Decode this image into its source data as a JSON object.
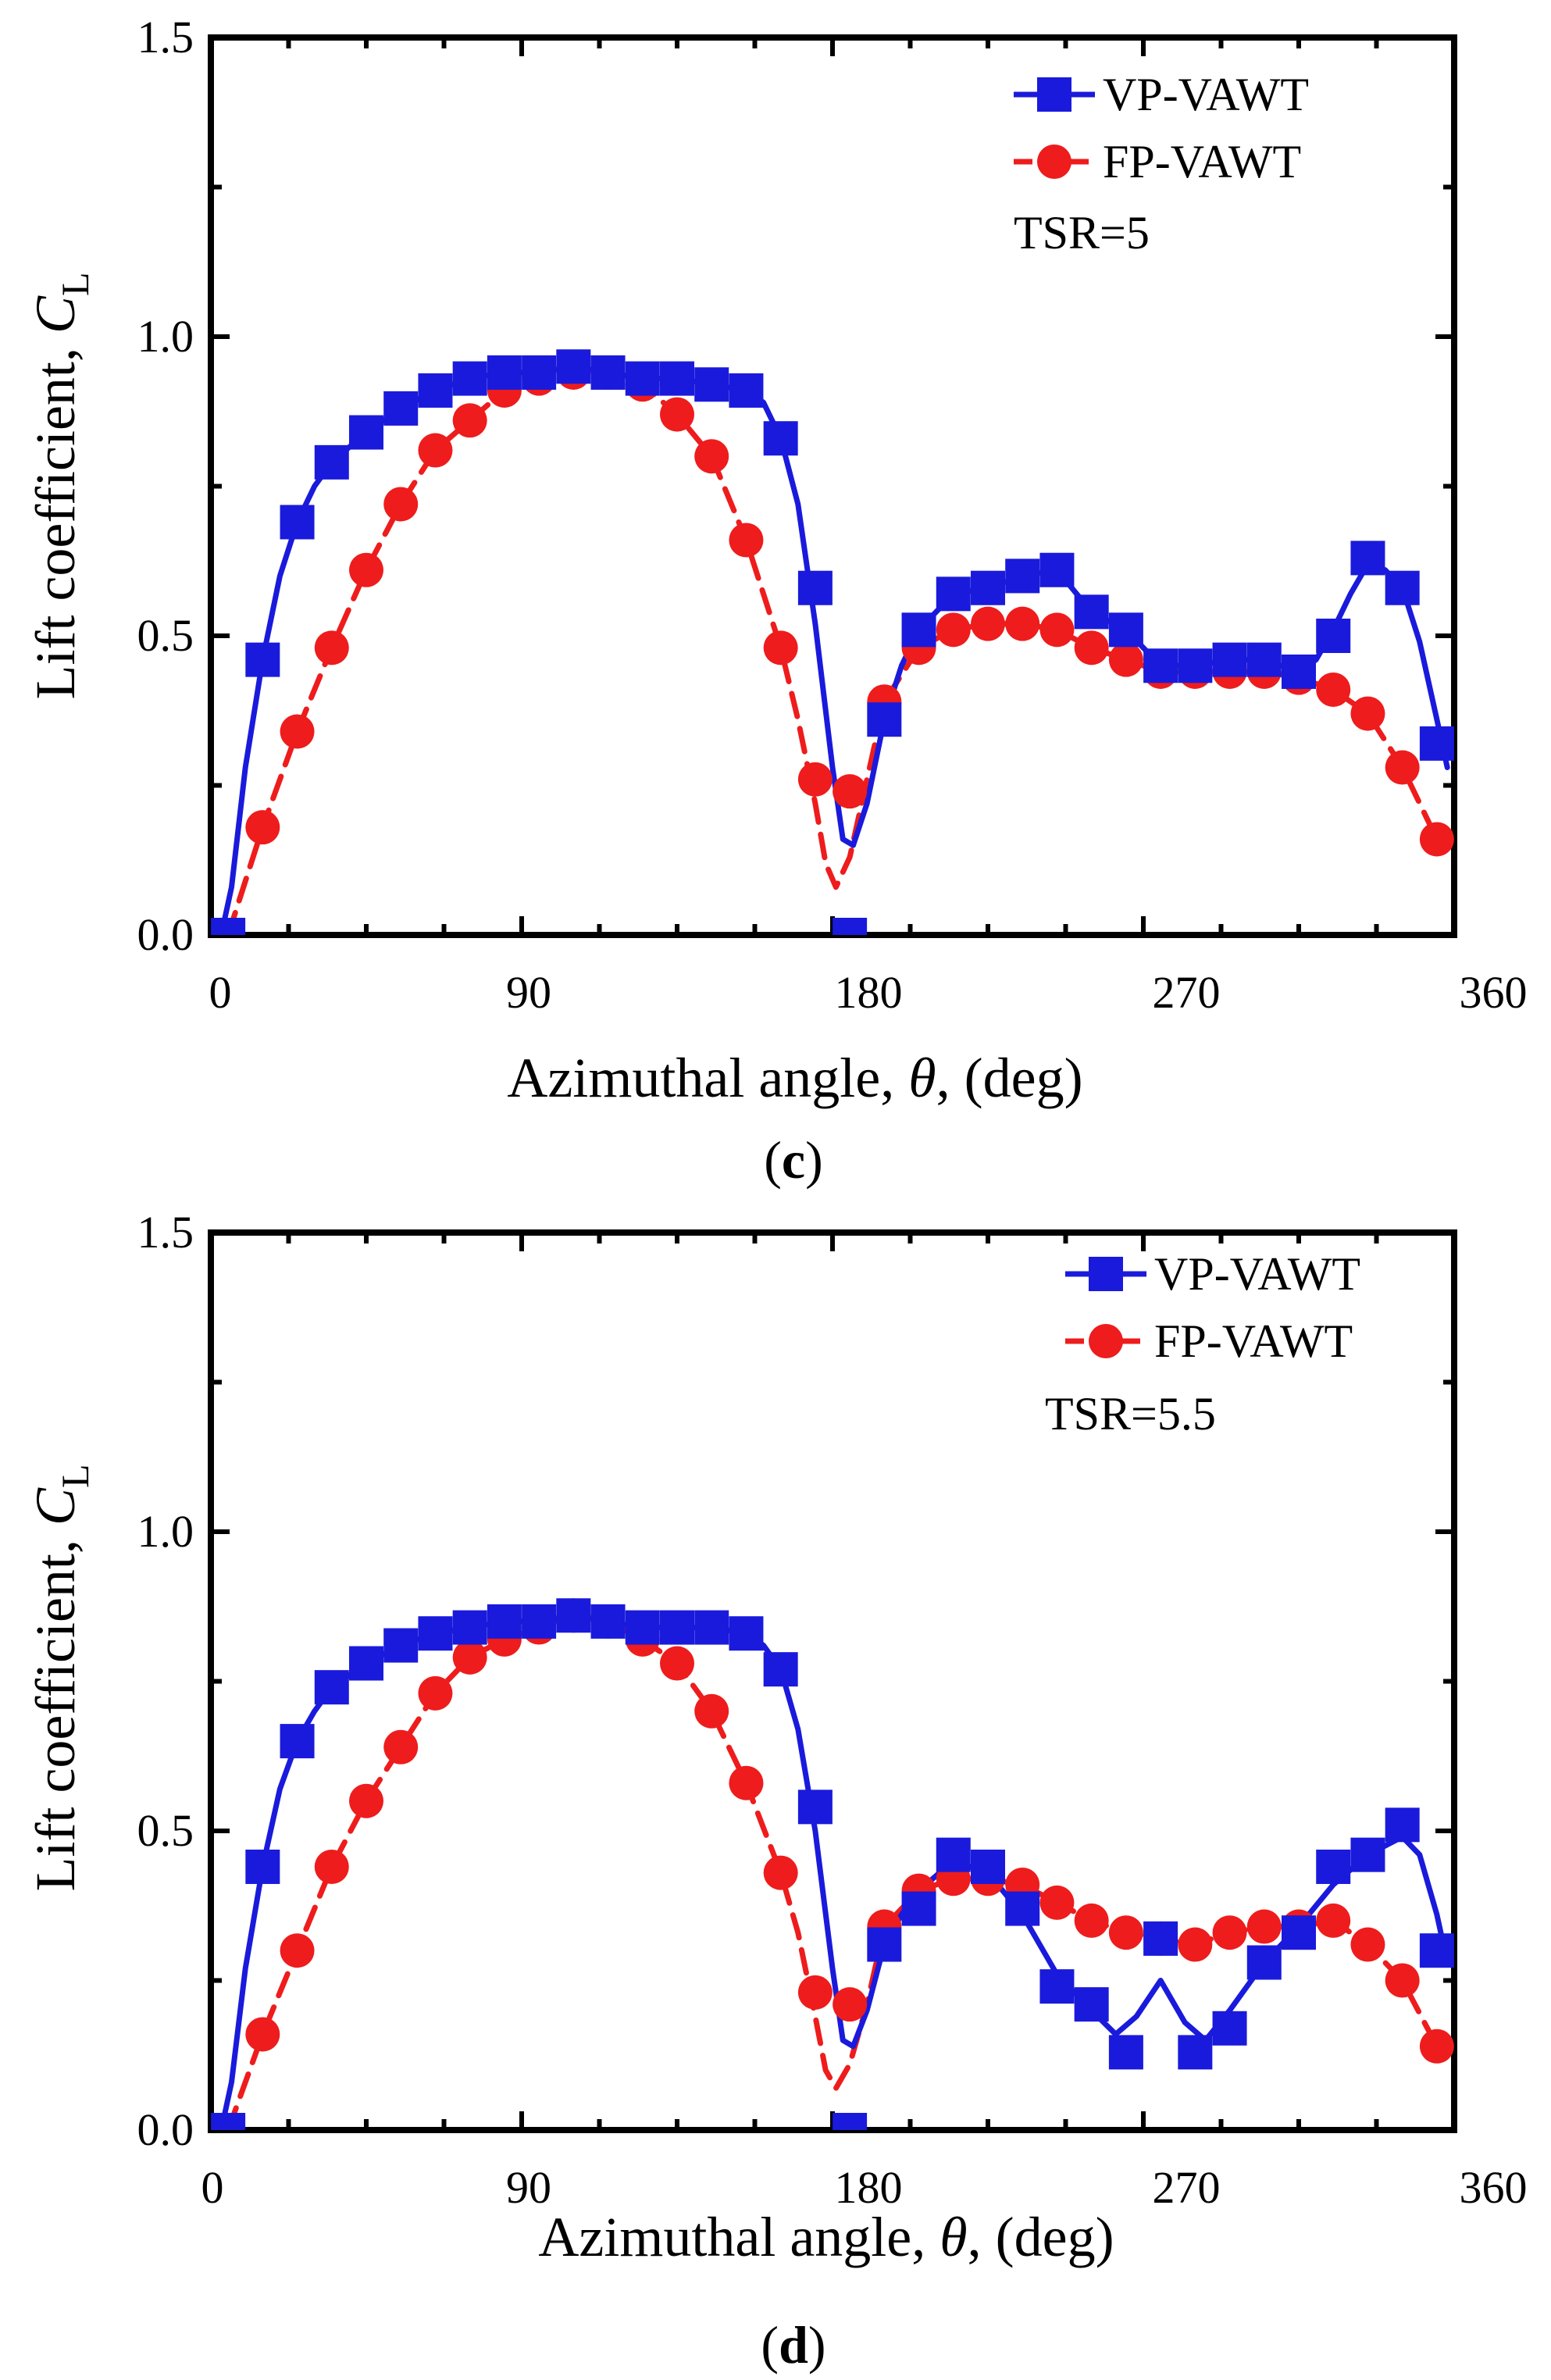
{
  "chart_data": [
    {
      "type": "line",
      "panel_label": "(c)",
      "panel_letter": "c",
      "annotation": "TSR=5",
      "xlabel_prefix": "Azimuthal angle, ",
      "xlabel_symbol": "θ",
      "xlabel_suffix": ", (deg)",
      "ylabel_prefix": "Lift coefficient, ",
      "ylabel_symbol": "C",
      "ylabel_subscript": "L",
      "xlim": [
        0,
        360
      ],
      "ylim": [
        0,
        1.5
      ],
      "xticks": [
        "0",
        "90",
        "180",
        "270",
        "360"
      ],
      "yticks": [
        "0.0",
        "0.5",
        "1.0",
        "1.5"
      ],
      "legend_position": "top-right",
      "series": [
        {
          "name": "VP-VAWT",
          "color": "#1a1adc",
          "marker": "square",
          "line": "solid",
          "x": [
            5,
            15,
            25,
            35,
            45,
            55,
            65,
            75,
            85,
            95,
            105,
            115,
            125,
            135,
            145,
            155,
            165,
            175,
            185,
            195,
            205,
            215,
            225,
            235,
            245,
            255,
            265,
            275,
            285,
            295,
            305,
            315,
            325,
            335,
            345,
            355
          ],
          "y": [
            0.0,
            0.46,
            0.69,
            0.79,
            0.84,
            0.88,
            0.91,
            0.93,
            0.94,
            0.94,
            0.95,
            0.94,
            0.93,
            0.93,
            0.92,
            0.91,
            0.83,
            0.58,
            0.0,
            0.36,
            0.51,
            0.57,
            0.58,
            0.6,
            0.61,
            0.54,
            0.51,
            0.45,
            0.45,
            0.46,
            0.46,
            0.44,
            0.5,
            0.63,
            0.58,
            0.32
          ],
          "curve_x": [
            3,
            6,
            10,
            15,
            20,
            25,
            30,
            35,
            45,
            55,
            65,
            75,
            85,
            95,
            105,
            115,
            125,
            135,
            145,
            155,
            160,
            165,
            170,
            175,
            180,
            183,
            186,
            190,
            195,
            200,
            205,
            215,
            225,
            235,
            245,
            255,
            265,
            275,
            285,
            295,
            305,
            315,
            320,
            325,
            330,
            335,
            340,
            345,
            350,
            355,
            358
          ],
          "curve_y": [
            0.0,
            0.08,
            0.28,
            0.46,
            0.6,
            0.69,
            0.75,
            0.79,
            0.84,
            0.88,
            0.91,
            0.93,
            0.94,
            0.94,
            0.95,
            0.94,
            0.93,
            0.93,
            0.92,
            0.91,
            0.89,
            0.83,
            0.72,
            0.52,
            0.28,
            0.16,
            0.15,
            0.22,
            0.36,
            0.45,
            0.51,
            0.57,
            0.58,
            0.6,
            0.61,
            0.54,
            0.51,
            0.45,
            0.45,
            0.46,
            0.46,
            0.44,
            0.46,
            0.51,
            0.57,
            0.62,
            0.61,
            0.58,
            0.49,
            0.36,
            0.28
          ]
        },
        {
          "name": "FP-VAWT",
          "color": "#ee1c1c",
          "marker": "circle",
          "line": "dashed",
          "x": [
            5,
            15,
            25,
            35,
            45,
            55,
            65,
            75,
            85,
            95,
            105,
            115,
            125,
            135,
            145,
            155,
            165,
            175,
            185,
            195,
            205,
            215,
            225,
            235,
            245,
            255,
            265,
            275,
            285,
            295,
            305,
            315,
            325,
            335,
            345,
            355
          ],
          "y": [
            0.0,
            0.18,
            0.34,
            0.48,
            0.61,
            0.72,
            0.81,
            0.86,
            0.91,
            0.93,
            0.94,
            0.94,
            0.92,
            0.87,
            0.8,
            0.66,
            0.48,
            0.26,
            0.24,
            0.39,
            0.48,
            0.51,
            0.52,
            0.52,
            0.51,
            0.48,
            0.46,
            0.44,
            0.44,
            0.44,
            0.44,
            0.43,
            0.41,
            0.37,
            0.28,
            0.16
          ],
          "curve_x": [
            5,
            15,
            25,
            35,
            45,
            55,
            65,
            75,
            85,
            95,
            105,
            115,
            125,
            135,
            145,
            155,
            165,
            170,
            175,
            178,
            181,
            185,
            190,
            195,
            205,
            215,
            225,
            235,
            245,
            255,
            265,
            275,
            285,
            295,
            305,
            315,
            325,
            335,
            345,
            355
          ],
          "curve_y": [
            0.0,
            0.18,
            0.34,
            0.48,
            0.61,
            0.72,
            0.81,
            0.86,
            0.91,
            0.93,
            0.94,
            0.94,
            0.92,
            0.87,
            0.8,
            0.66,
            0.48,
            0.36,
            0.22,
            0.12,
            0.08,
            0.13,
            0.26,
            0.39,
            0.48,
            0.51,
            0.52,
            0.52,
            0.51,
            0.48,
            0.46,
            0.44,
            0.44,
            0.44,
            0.44,
            0.43,
            0.41,
            0.37,
            0.28,
            0.16
          ]
        }
      ]
    },
    {
      "type": "line",
      "panel_label": "(d)",
      "panel_letter": "d",
      "annotation": "TSR=5.5",
      "xlabel_prefix": "Azimuthal angle, ",
      "xlabel_symbol": "θ",
      "xlabel_suffix": ", (deg)",
      "ylabel_prefix": "Lift coefficient, ",
      "ylabel_symbol": "C",
      "ylabel_subscript": "L",
      "xlim": [
        0,
        360
      ],
      "ylim": [
        0,
        1.5
      ],
      "xticks": [
        "0",
        "90",
        "180",
        "270",
        "360"
      ],
      "yticks": [
        "0.0",
        "0.5",
        "1.0",
        "1.5"
      ],
      "legend_position": "top-right",
      "series": [
        {
          "name": "VP-VAWT",
          "color": "#1a1adc",
          "marker": "square",
          "line": "solid",
          "x": [
            5,
            15,
            25,
            35,
            45,
            55,
            65,
            75,
            85,
            95,
            105,
            115,
            125,
            135,
            145,
            155,
            165,
            175,
            185,
            195,
            205,
            215,
            225,
            235,
            245,
            255,
            265,
            275,
            285,
            295,
            305,
            315,
            325,
            335,
            345,
            355
          ],
          "y": [
            0.0,
            0.44,
            0.65,
            0.74,
            0.78,
            0.81,
            0.83,
            0.84,
            0.85,
            0.85,
            0.86,
            0.85,
            0.84,
            0.84,
            0.84,
            0.83,
            0.77,
            0.54,
            0.0,
            0.31,
            0.37,
            0.46,
            0.44,
            0.37,
            0.24,
            0.21,
            0.13,
            0.32,
            0.13,
            0.17,
            0.28,
            0.33,
            0.44,
            0.46,
            0.51,
            0.3
          ],
          "curve_x": [
            3,
            6,
            10,
            15,
            20,
            25,
            30,
            35,
            45,
            55,
            65,
            75,
            85,
            95,
            105,
            115,
            125,
            135,
            145,
            155,
            160,
            165,
            170,
            175,
            180,
            183,
            186,
            190,
            195,
            200,
            205,
            215,
            225,
            235,
            245,
            255,
            262,
            268,
            275,
            282,
            288,
            295,
            305,
            315,
            325,
            335,
            345,
            350,
            355,
            358
          ],
          "curve_y": [
            0.0,
            0.08,
            0.27,
            0.44,
            0.57,
            0.65,
            0.7,
            0.74,
            0.78,
            0.81,
            0.83,
            0.84,
            0.85,
            0.85,
            0.86,
            0.85,
            0.84,
            0.84,
            0.84,
            0.83,
            0.81,
            0.77,
            0.67,
            0.5,
            0.27,
            0.15,
            0.14,
            0.2,
            0.31,
            0.36,
            0.4,
            0.45,
            0.43,
            0.36,
            0.26,
            0.2,
            0.16,
            0.19,
            0.25,
            0.18,
            0.15,
            0.2,
            0.28,
            0.34,
            0.41,
            0.46,
            0.49,
            0.46,
            0.36,
            0.28
          ]
        },
        {
          "name": "FP-VAWT",
          "color": "#ee1c1c",
          "marker": "circle",
          "line": "dashed",
          "x": [
            5,
            15,
            25,
            35,
            45,
            55,
            65,
            75,
            85,
            95,
            105,
            115,
            125,
            135,
            145,
            155,
            165,
            175,
            185,
            195,
            205,
            215,
            225,
            235,
            245,
            255,
            265,
            275,
            285,
            295,
            305,
            315,
            325,
            335,
            345,
            355
          ],
          "y": [
            0.0,
            0.16,
            0.3,
            0.44,
            0.55,
            0.64,
            0.73,
            0.79,
            0.82,
            0.84,
            0.86,
            0.85,
            0.82,
            0.78,
            0.7,
            0.58,
            0.43,
            0.23,
            0.21,
            0.34,
            0.4,
            0.42,
            0.42,
            0.41,
            0.38,
            0.35,
            0.33,
            0.32,
            0.31,
            0.33,
            0.34,
            0.34,
            0.35,
            0.31,
            0.25,
            0.14
          ],
          "curve_x": [
            5,
            15,
            25,
            35,
            45,
            55,
            65,
            75,
            85,
            95,
            105,
            115,
            125,
            135,
            145,
            155,
            165,
            170,
            175,
            178,
            181,
            185,
            190,
            195,
            205,
            215,
            225,
            235,
            245,
            255,
            265,
            275,
            285,
            295,
            305,
            315,
            325,
            335,
            345,
            355
          ],
          "curve_y": [
            0.0,
            0.16,
            0.3,
            0.44,
            0.55,
            0.64,
            0.73,
            0.79,
            0.82,
            0.84,
            0.86,
            0.85,
            0.82,
            0.78,
            0.7,
            0.58,
            0.43,
            0.33,
            0.19,
            0.1,
            0.07,
            0.11,
            0.21,
            0.34,
            0.4,
            0.42,
            0.42,
            0.41,
            0.38,
            0.35,
            0.33,
            0.32,
            0.31,
            0.33,
            0.34,
            0.34,
            0.35,
            0.31,
            0.25,
            0.14
          ]
        }
      ]
    }
  ]
}
